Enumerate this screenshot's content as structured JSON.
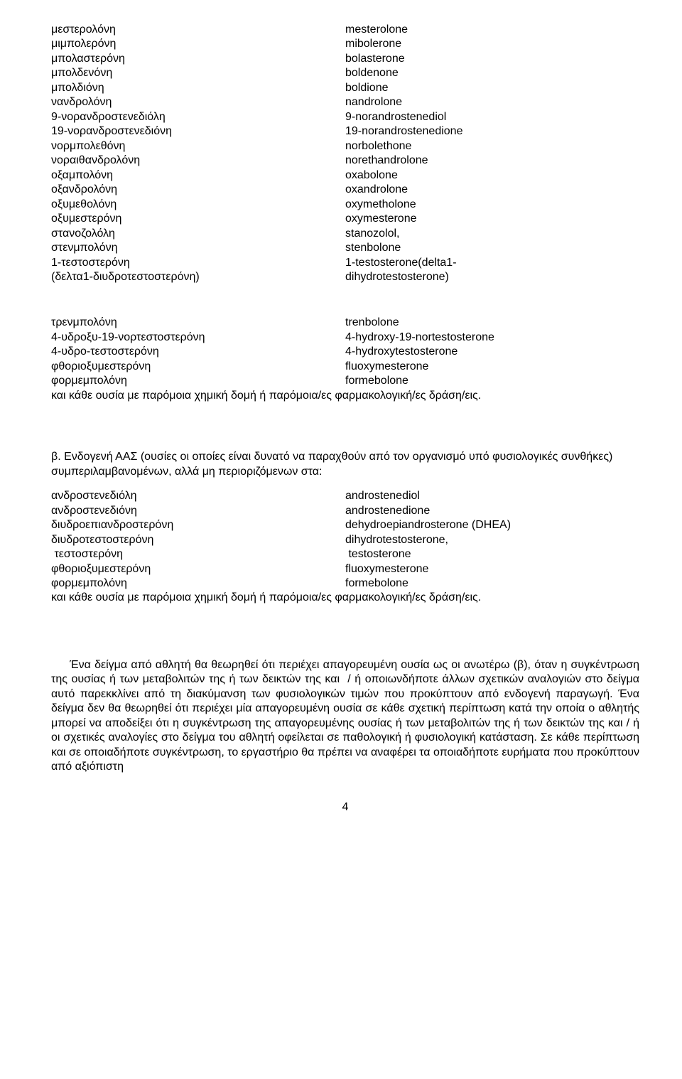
{
  "fonts": {
    "family": "Arial, Helvetica, sans-serif",
    "body_size_pt": 12,
    "line_height": 1.28
  },
  "colors": {
    "text": "#000000",
    "background": "#ffffff"
  },
  "list1": {
    "rows": [
      {
        "l": "μεστερολόνη",
        "r": "mesterolone"
      },
      {
        "l": "μιμπολερόνη",
        "r": "mibolerone"
      },
      {
        "l": "μπολαστερόνη",
        "r": "bolasterone"
      },
      {
        "l": "μπολδενόνη",
        "r": "boldenone"
      },
      {
        "l": "μπολδιόνη",
        "r": "boldione"
      },
      {
        "l": "νανδρολόνη",
        "r": "nandrolone"
      },
      {
        "l": "9-νορανδροστενεδιόλη",
        "r": "9-norandrostenediol"
      },
      {
        "l": "19-νορανδροστενεδιόνη",
        "r": "19-norandrostenedione"
      },
      {
        "l": "νορμπολεθόνη",
        "r": "norbolethone"
      },
      {
        "l": "νοραιθανδρολόνη",
        "r": "norethandrolone"
      },
      {
        "l": "οξαμπολόνη",
        "r": "oxabolone"
      },
      {
        "l": "οξανδρολόνη",
        "r": "oxandrolone"
      },
      {
        "l": "οξυμεθολόνη",
        "r": "oxymetholone"
      },
      {
        "l": "οξυμεστερόνη",
        "r": "oxymesterone"
      },
      {
        "l": "στανοζολόλη",
        "r": "stanozolol,"
      },
      {
        "l": "στενμπολόνη",
        "r": "stenbolone"
      },
      {
        "l": "1-τεστοστερόνη\n(δελτα1-διυδροτεστοστερόνη)",
        "r": "1-testosterone(delta1-\ndihydrotestosterone)"
      }
    ]
  },
  "list2": {
    "rows": [
      {
        "l": "τρενμπολόνη",
        "r": "trenbolone"
      },
      {
        "l": "4-υδροξυ-19-νορτεστοστερόνη",
        "r": "4-hydroxy-19-nortestosterone"
      },
      {
        "l": "4-υδρο-τεστοστερόνη",
        "r": "4-hydroxytestosterone"
      },
      {
        "l": "φθοριοξυμεστερόνη",
        "r": "fluoxymesterone"
      },
      {
        "l": "φορμεμπολόνη",
        "r": "formebolone"
      }
    ],
    "trailing": "και κάθε ουσία με παρόμοια χημική δομή ή παρόμοια/ες φαρμακολογική/ες δράση/εις."
  },
  "section_b": {
    "intro": "β. Ενδογενή ΑΑΣ (ουσίες οι οποίες είναι δυνατό να παραχθούν από τον οργανισμό υπό φυσιολογικές συνθήκες) συμπεριλαμβανομένων, αλλά μη περιοριζόμενων στα:",
    "rows": [
      {
        "l": "ανδροστενεδιόλη",
        "r": "androstenediol"
      },
      {
        "l": "ανδροστενεδιόνη",
        "r": "androstenedione"
      },
      {
        "l": "διυδροεπιανδροστερόνη",
        "r": "dehydroepiandrosterone (DHEA)"
      },
      {
        "l": "διυδροτεστοστερόνη",
        "r": "dihydrotestosterone,"
      },
      {
        "l": " τεστοστερόνη",
        "r": " testosterone"
      },
      {
        "l": "φθοριοξυμεστερόνη",
        "r": "fluoxymesterone"
      },
      {
        "l": "φορμεμπολόνη",
        "r": "formebolone"
      }
    ],
    "trailing": "και  κάθε ουσία με παρόμοια χημική δομή ή παρόμοια/ες φαρμακολογική/ες δράση/εις."
  },
  "paragraph_final": "     Ένα δείγμα από αθλητή θα θεωρηθεί ότι περιέχει απαγορευμένη ουσία ως οι ανωτέρω (β), όταν η συγκέντρωση της ουσίας ή των μεταβολιτών της ή των δεικτών της και  / ή οποιωνδήποτε άλλων σχετικών αναλογιών στο δείγμα αυτό παρεκκλίνει από τη διακύμανση των φυσιολογικών τιμών που προκύπτουν από ενδογενή παραγωγή. Ένα δείγμα δεν θα θεωρηθεί ότι περιέχει μία απαγορευμένη ουσία σε κάθε σχετική περίπτωση κατά την οποία ο αθλητής μπορεί να αποδείξει ότι η συγκέντρωση της απαγορευμένης ουσίας ή των μεταβολιτών της ή των δεικτών της και / ή οι σχετικές αναλογίες στο δείγμα του αθλητή οφείλεται σε παθολογική ή φυσιολογική κατάσταση. Σε κάθε περίπτωση και σε οποιαδήποτε συγκέντρωση, το εργαστήριο θα πρέπει να αναφέρει τα οποιαδήποτε ευρήματα που προκύπτουν από αξιόπιστη",
  "page_number": "4"
}
